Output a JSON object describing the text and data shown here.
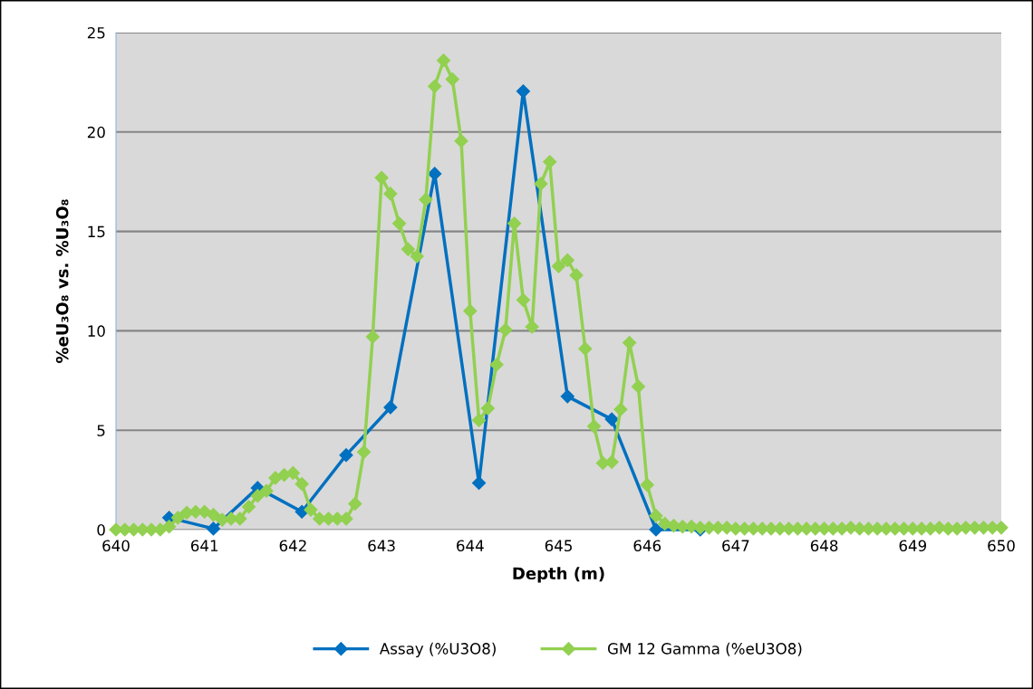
{
  "chart_data": {
    "type": "line",
    "xlabel": "Depth (m)",
    "ylabel": "%eU₃O₈ vs. %U₃O₈",
    "xlim": [
      640,
      650
    ],
    "xticks": [
      640,
      641,
      642,
      643,
      644,
      645,
      646,
      647,
      648,
      649,
      650
    ],
    "ylim": [
      0,
      25
    ],
    "yticks": [
      0,
      5,
      10,
      15,
      20,
      25
    ],
    "grid": "y",
    "legend": "bottom",
    "marker": "diamond",
    "line_style": "solid",
    "series": [
      {
        "name": "Assay (%U3O8)",
        "color": "#0070c0",
        "x": [
          640.6,
          641.1,
          641.6,
          642.1,
          642.6,
          643.1,
          643.6,
          644.1,
          644.6,
          645.1,
          645.6,
          646.1,
          646.6
        ],
        "values": [
          0.6,
          0.05,
          2.1,
          0.9,
          3.75,
          6.15,
          17.9,
          2.35,
          22.05,
          6.7,
          5.55,
          0,
          0
        ]
      },
      {
        "name": "GM 12 Gamma (%eU3O8)",
        "color": "#92d050",
        "x": [
          640.0,
          640.1,
          640.2,
          640.3,
          640.4,
          640.5,
          640.6,
          640.7,
          640.8,
          640.9,
          641.0,
          641.1,
          641.2,
          641.3,
          641.4,
          641.5,
          641.6,
          641.7,
          641.8,
          641.9,
          642.0,
          642.1,
          642.2,
          642.3,
          642.4,
          642.5,
          642.6,
          642.7,
          642.8,
          642.9,
          643.0,
          643.1,
          643.2,
          643.3,
          643.4,
          643.5,
          643.6,
          643.7,
          643.8,
          643.9,
          644.0,
          644.1,
          644.2,
          644.3,
          644.4,
          644.5,
          644.6,
          644.7,
          644.8,
          644.9,
          645.0,
          645.1,
          645.2,
          645.3,
          645.4,
          645.5,
          645.6,
          645.7,
          645.8,
          645.9,
          646.0,
          646.1,
          646.2,
          646.3,
          646.4,
          646.5,
          646.6,
          646.7,
          646.8,
          646.9,
          647.0,
          647.1,
          647.2,
          647.3,
          647.4,
          647.5,
          647.6,
          647.7,
          647.8,
          647.9,
          648.0,
          648.1,
          648.2,
          648.3,
          648.4,
          648.5,
          648.6,
          648.7,
          648.8,
          648.9,
          649.0,
          649.1,
          649.2,
          649.3,
          649.4,
          649.5,
          649.6,
          649.7,
          649.8,
          649.9,
          650.0
        ],
        "values": [
          0,
          0,
          0,
          0,
          0,
          0,
          0.15,
          0.6,
          0.85,
          0.9,
          0.9,
          0.75,
          0.5,
          0.55,
          0.55,
          1.15,
          1.7,
          1.95,
          2.6,
          2.75,
          2.85,
          2.3,
          1.0,
          0.55,
          0.55,
          0.55,
          0.55,
          1.3,
          3.9,
          9.7,
          17.7,
          16.9,
          15.4,
          14.1,
          13.75,
          16.6,
          22.3,
          23.6,
          22.65,
          19.55,
          11.0,
          5.5,
          6.1,
          8.3,
          10.05,
          15.4,
          11.55,
          10.2,
          17.4,
          18.5,
          13.25,
          13.55,
          12.8,
          9.1,
          5.2,
          3.35,
          3.4,
          6.05,
          9.4,
          7.2,
          2.25,
          0.7,
          0.3,
          0.2,
          0.15,
          0.15,
          0.1,
          0.1,
          0.1,
          0.1,
          0.05,
          0.05,
          0.05,
          0.05,
          0.05,
          0.05,
          0.05,
          0.05,
          0.05,
          0.05,
          0.05,
          0.05,
          0.05,
          0.1,
          0.05,
          0.05,
          0.05,
          0.05,
          0.05,
          0.05,
          0.05,
          0.05,
          0.05,
          0.1,
          0.05,
          0.05,
          0.1,
          0.1,
          0.1,
          0.1,
          0.1
        ]
      }
    ]
  }
}
